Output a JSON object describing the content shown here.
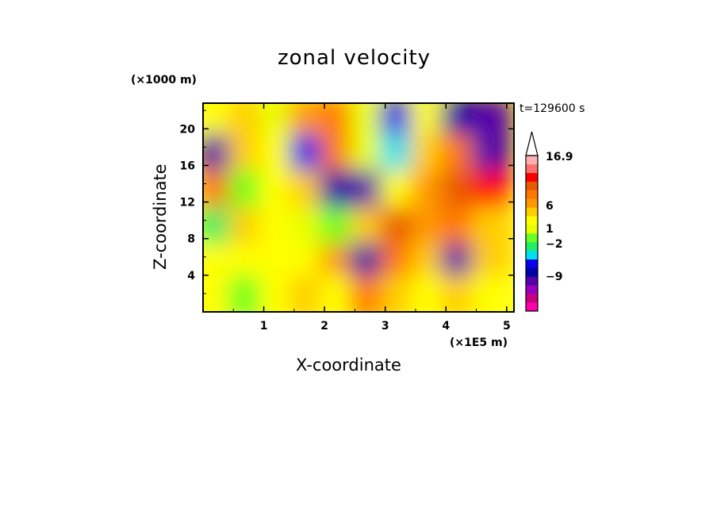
{
  "chart_data": {
    "type": "heatmap",
    "title": "zonal velocity",
    "xlabel": "X-coordinate",
    "ylabel": "Z-coordinate",
    "x_unit": "(×1E5 m)",
    "y_unit": "(×1000 m)",
    "time_label": "t=129600 s",
    "xlim": [
      0,
      5.12
    ],
    "ylim": [
      0,
      22.8
    ],
    "x_ticks": [
      1,
      2,
      3,
      4,
      5
    ],
    "y_ticks": [
      4,
      8,
      12,
      16,
      20
    ],
    "colorbar": {
      "labels": [
        {
          "text": "16.9",
          "value": 16.9
        },
        {
          "text": "6",
          "value": 6
        },
        {
          "text": "1",
          "value": 1
        },
        {
          "text": "-2",
          "value": -2
        },
        {
          "text": "-9",
          "value": -9
        }
      ],
      "extend": "max",
      "colors": [
        "#ff00aa",
        "#c8007f",
        "#9a00c0",
        "#5500aa",
        "#0000a8",
        "#0a00ea",
        "#00e0f0",
        "#22ee66",
        "#66ff22",
        "#e8ff00",
        "#ffff00",
        "#ffcc00",
        "#ff9900",
        "#ff7700",
        "#e85a00",
        "#ff0000",
        "#ff7070",
        "#ffb0b0"
      ]
    },
    "field": {
      "x": [
        0.25,
        0.75,
        1.25,
        1.75,
        2.25,
        2.75,
        3.25,
        3.75,
        4.25,
        4.75
      ],
      "z": [
        21,
        17,
        13,
        9,
        5,
        1.5
      ],
      "u": [
        [
          1.5,
          2.5,
          0.5,
          3,
          4,
          0.5,
          -3,
          1,
          -6,
          -8
        ],
        [
          -7,
          2.5,
          1,
          -3,
          4,
          0.5,
          -2,
          2,
          4,
          -7
        ],
        [
          4,
          0,
          1.5,
          2,
          -5,
          -7,
          1,
          3,
          5,
          7
        ],
        [
          -1,
          2,
          1.5,
          0.5,
          0,
          2,
          5,
          3,
          4,
          2
        ],
        [
          1.5,
          1,
          1.5,
          1,
          3,
          -6,
          4,
          2,
          -7,
          2
        ],
        [
          1.5,
          0,
          1,
          2,
          1,
          4,
          2,
          1,
          2,
          1
        ]
      ]
    }
  }
}
